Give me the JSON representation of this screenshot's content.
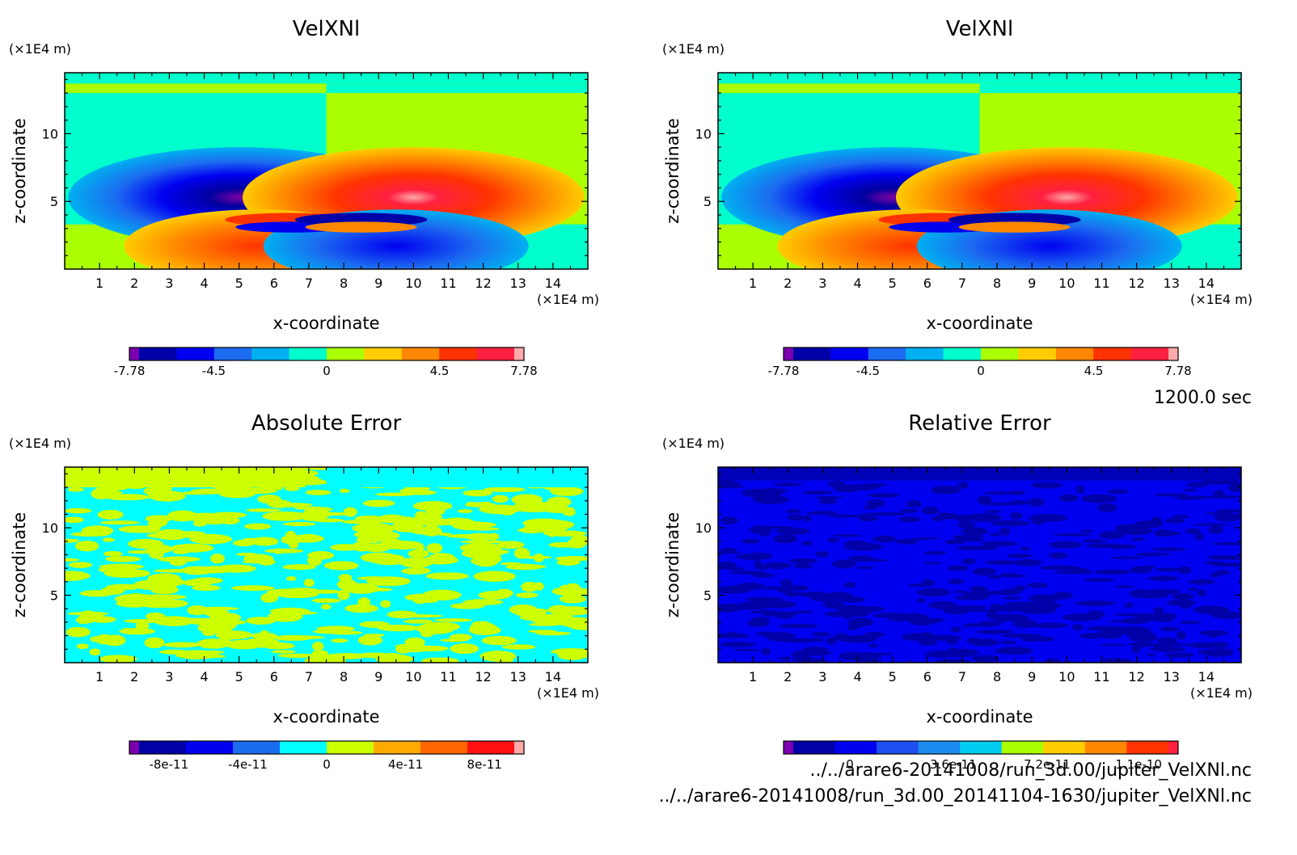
{
  "time_label": "1200.0 sec",
  "footer": {
    "file1": "../../arare6-20141008/run_3d.00/jupiter_VelXNl.nc",
    "file2": "../../arare6-20141008/run_3d.00_20141104-1630/jupiter_VelXNl.nc"
  },
  "chart_data": [
    {
      "type": "heatmap",
      "title": "VelXNl",
      "xlabel": "x-coordinate",
      "ylabel": "z-coordinate",
      "x_unit": "(×1E4 m)",
      "y_unit": "(×1E4 m)",
      "xlim": [
        0,
        15
      ],
      "ylim": [
        0,
        14.5
      ],
      "x_ticks": [
        "1",
        "2",
        "3",
        "4",
        "5",
        "6",
        "7",
        "8",
        "9",
        "10",
        "11",
        "12",
        "13",
        "14"
      ],
      "y_ticks": [
        "5",
        "10"
      ],
      "colorbar": {
        "colors": [
          "#7a00b0",
          "#0000a8",
          "#0000f0",
          "#1c6cf0",
          "#00b0f0",
          "#00ffcc",
          "#aaff00",
          "#ffcc00",
          "#ff8800",
          "#ff3300",
          "#ff2040",
          "#ffaaaa"
        ],
        "labels": [
          "-7.78",
          "-4.5",
          "0",
          "4.5",
          "7.78"
        ]
      }
    },
    {
      "type": "heatmap",
      "title": "VelXNl",
      "xlabel": "x-coordinate",
      "ylabel": "z-coordinate",
      "x_unit": "(×1E4 m)",
      "y_unit": "(×1E4 m)",
      "xlim": [
        0,
        15
      ],
      "ylim": [
        0,
        14.5
      ],
      "x_ticks": [
        "1",
        "2",
        "3",
        "4",
        "5",
        "6",
        "7",
        "8",
        "9",
        "10",
        "11",
        "12",
        "13",
        "14"
      ],
      "y_ticks": [
        "5",
        "10"
      ],
      "colorbar": {
        "colors": [
          "#7a00b0",
          "#0000a8",
          "#0000f0",
          "#1c6cf0",
          "#00b0f0",
          "#00ffcc",
          "#aaff00",
          "#ffcc00",
          "#ff8800",
          "#ff3300",
          "#ff2040",
          "#ffaaaa"
        ],
        "labels": [
          "-7.78",
          "-4.5",
          "0",
          "4.5",
          "7.78"
        ]
      }
    },
    {
      "type": "heatmap",
      "title": "Absolute Error",
      "xlabel": "x-coordinate",
      "ylabel": "z-coordinate",
      "x_unit": "(×1E4 m)",
      "y_unit": "(×1E4 m)",
      "xlim": [
        0,
        15
      ],
      "ylim": [
        0,
        14.5
      ],
      "x_ticks": [
        "1",
        "2",
        "3",
        "4",
        "5",
        "6",
        "7",
        "8",
        "9",
        "10",
        "11",
        "12",
        "13",
        "14"
      ],
      "y_ticks": [
        "5",
        "10"
      ],
      "colorbar": {
        "colors": [
          "#7a00b0",
          "#0000a8",
          "#0000f0",
          "#1c6cf0",
          "#00ffff",
          "#ccff00",
          "#ffaa00",
          "#ff6600",
          "#ff1111",
          "#ffaaaa"
        ],
        "labels": [
          "-8e-11",
          "-4e-11",
          "0",
          "4e-11",
          "8e-11"
        ]
      }
    },
    {
      "type": "heatmap",
      "title": "Relative Error",
      "xlabel": "x-coordinate",
      "ylabel": "z-coordinate",
      "x_unit": "(×1E4 m)",
      "y_unit": "(×1E4 m)",
      "xlim": [
        0,
        15
      ],
      "ylim": [
        0,
        14.5
      ],
      "x_ticks": [
        "1",
        "2",
        "3",
        "4",
        "5",
        "6",
        "7",
        "8",
        "9",
        "10",
        "11",
        "12",
        "13",
        "14"
      ],
      "y_ticks": [
        "5",
        "10"
      ],
      "colorbar": {
        "colors": [
          "#7a00b0",
          "#0000a8",
          "#0000f0",
          "#1c50f0",
          "#1c8cf0",
          "#00ccf0",
          "#aaff00",
          "#ffcc00",
          "#ff8800",
          "#ff3300",
          "#ff2040"
        ],
        "labels": [
          "0",
          "3.6e-11",
          "7.2e-11",
          "1.1e-10"
        ]
      }
    }
  ]
}
